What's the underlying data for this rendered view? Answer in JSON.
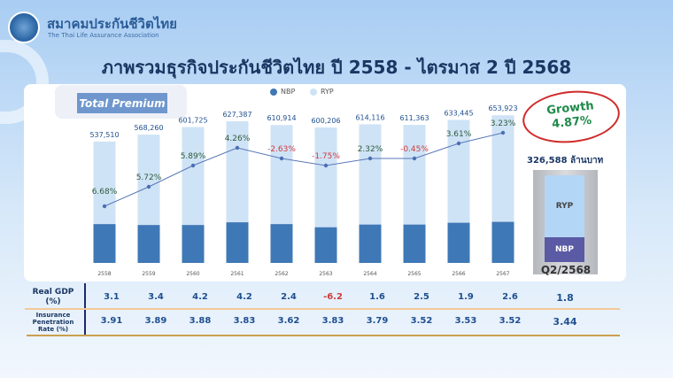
{
  "header": {
    "org_th": "สมาคมประกันชีวิตไทย",
    "org_en": "The Thai Life Assurance Association",
    "title": "ภาพรวมธุรกิจประกันชีวิตไทย ปี 2558 - ไตรมาส 2 ปี 2568"
  },
  "badge": "Total Premium",
  "chart_data": {
    "type": "bar",
    "stacked": true,
    "title": "Total Premium",
    "categories": [
      "2558",
      "2559",
      "2560",
      "2561",
      "2562",
      "2563",
      "2564",
      "2565",
      "2566",
      "2567"
    ],
    "totals": [
      537510,
      568260,
      601725,
      627387,
      610914,
      600206,
      614116,
      611363,
      633445,
      653923
    ],
    "total_labels": [
      "537,510",
      "568,260",
      "601,725",
      "627,387",
      "610,914",
      "600,206",
      "614,116",
      "611,363",
      "633,445",
      "653,923"
    ],
    "series": [
      {
        "name": "NBP",
        "color": "#3f78b6",
        "values": [
          172000,
          168000,
          168000,
          180000,
          172000,
          158000,
          170000,
          170000,
          178000,
          182000
        ]
      },
      {
        "name": "RYP",
        "color": "#cfe3f6",
        "values": [
          365510,
          400260,
          433725,
          447387,
          438914,
          442206,
          444116,
          441363,
          455445,
          471923
        ]
      }
    ],
    "growth": {
      "name": "Growth (%)",
      "values": [
        6.68,
        5.72,
        5.89,
        4.26,
        -2.63,
        -1.75,
        2.32,
        -0.45,
        3.61,
        3.23
      ],
      "labels": [
        "6.68%",
        "5.72%",
        "5.89%",
        "4.26%",
        "-2.63%",
        "-1.75%",
        "2.32%",
        "-0.45%",
        "3.61%",
        "3.23%"
      ]
    },
    "legend": [
      "NBP",
      "RYP"
    ],
    "legend_position": "top-center",
    "ylim": [
      0,
      700000
    ]
  },
  "colors": {
    "positive": "#2e5a3a",
    "negative": "#d23a3a"
  },
  "q2": {
    "growth_title": "Growth",
    "growth_value": "4.87%",
    "total": "326,588 ล้านบาท",
    "ryp": "RYP",
    "nbp": "NBP",
    "label": "Q2/2568"
  },
  "table": {
    "gdp_label": "Real GDP (%)",
    "gdp": [
      "3.1",
      "3.4",
      "4.2",
      "4.2",
      "2.4",
      "-6.2",
      "1.6",
      "2.5",
      "1.9",
      "2.6",
      "1.8"
    ],
    "pen_label": "Insurance Penetration Rate (%)",
    "pen": [
      "3.91",
      "3.89",
      "3.88",
      "3.83",
      "3.62",
      "3.83",
      "3.79",
      "3.52",
      "3.53",
      "3.52",
      "3.44"
    ]
  }
}
